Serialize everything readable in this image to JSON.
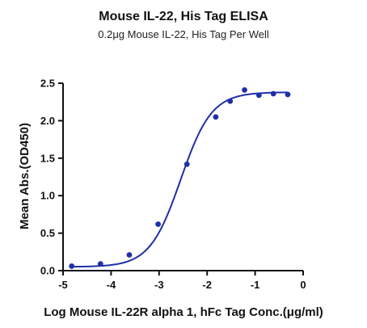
{
  "chart_data": {
    "type": "scatter",
    "title": "Mouse IL-22, His Tag ELISA",
    "subtitle": "0.2μg Mouse IL-22, His Tag Per Well",
    "xlabel": "Log Mouse IL-22R alpha 1, hFc Tag Conc.(μg/ml)",
    "ylabel": "Mean Abs.(OD450)",
    "xlim": [
      -5,
      0
    ],
    "ylim": [
      0,
      2.5
    ],
    "xticks": [
      "-5",
      "-4",
      "-3",
      "-2",
      "-1",
      "0"
    ],
    "yticks": [
      "0.0",
      "0.5",
      "1.0",
      "1.5",
      "2.0",
      "2.5"
    ],
    "grid": false,
    "series": [
      {
        "color": "#1f2fa8",
        "x": [
          -4.82,
          -4.22,
          -3.62,
          -3.02,
          -2.42,
          -1.82,
          -1.52,
          -1.22,
          -0.92,
          -0.62,
          -0.32
        ],
        "y": [
          0.06,
          0.09,
          0.21,
          0.62,
          1.42,
          2.05,
          2.26,
          2.41,
          2.34,
          2.36,
          2.35
        ]
      }
    ],
    "fit": {
      "type": "4PL",
      "bottom": 0.05,
      "top": 2.38,
      "logEC50": -2.55,
      "hill": 1.35,
      "color": "#1f2fa8"
    }
  }
}
